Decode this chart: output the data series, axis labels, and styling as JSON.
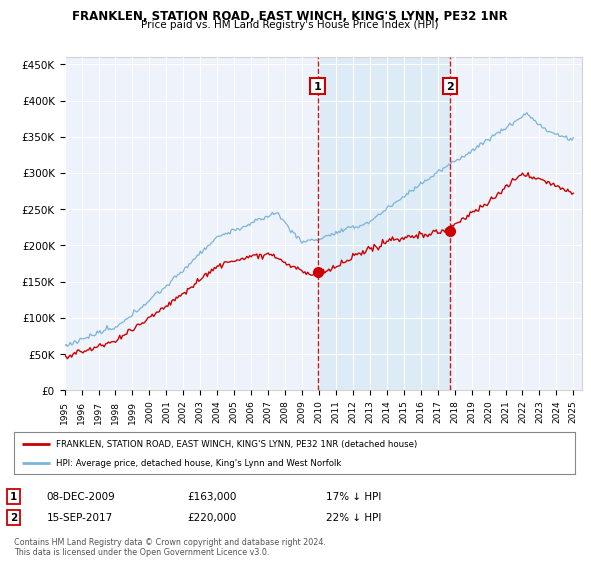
{
  "title": "FRANKLEN, STATION ROAD, EAST WINCH, KING'S LYNN, PE32 1NR",
  "subtitle": "Price paid vs. HM Land Registry's House Price Index (HPI)",
  "legend_line1": "FRANKLEN, STATION ROAD, EAST WINCH, KING'S LYNN, PE32 1NR (detached house)",
  "legend_line2": "HPI: Average price, detached house, King's Lynn and West Norfolk",
  "annotation1_num": "1",
  "annotation1_date": "08-DEC-2009",
  "annotation1_price": "£163,000",
  "annotation1_hpi": "17% ↓ HPI",
  "annotation1_year": 2009.92,
  "annotation1_value": 163000,
  "annotation2_num": "2",
  "annotation2_date": "15-SEP-2017",
  "annotation2_price": "£220,000",
  "annotation2_hpi": "22% ↓ HPI",
  "annotation2_year": 2017.71,
  "annotation2_value": 220000,
  "footer": "Contains HM Land Registry data © Crown copyright and database right 2024.\nThis data is licensed under the Open Government Licence v3.0.",
  "hpi_color": "#7ab4d8",
  "price_color": "#cc0000",
  "vline_color": "#cc0000",
  "shade_color": "#d6e8f5",
  "background_color": "#eef3fb",
  "grid_color": "#ffffff",
  "ylim": [
    0,
    460000
  ],
  "xlim_start": 1995,
  "xlim_end": 2025.5,
  "yticks": [
    0,
    50000,
    100000,
    150000,
    200000,
    250000,
    300000,
    350000,
    400000,
    450000
  ],
  "ytick_labels": [
    "£0",
    "£50K",
    "£100K",
    "£150K",
    "£200K",
    "£250K",
    "£300K",
    "£350K",
    "£400K",
    "£450K"
  ],
  "xtick_years": [
    1995,
    1996,
    1997,
    1998,
    1999,
    2000,
    2001,
    2002,
    2003,
    2004,
    2005,
    2006,
    2007,
    2008,
    2009,
    2010,
    2011,
    2012,
    2013,
    2014,
    2015,
    2016,
    2017,
    2018,
    2019,
    2020,
    2021,
    2022,
    2023,
    2024,
    2025
  ]
}
